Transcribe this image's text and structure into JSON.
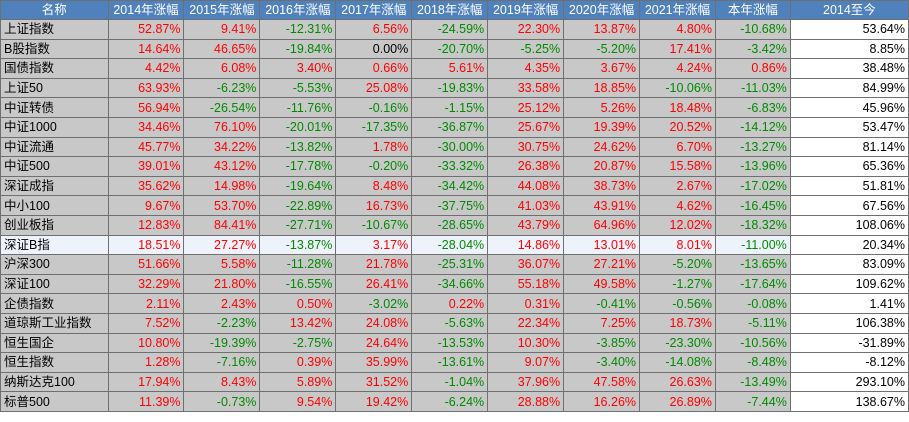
{
  "table": {
    "headers": [
      "名称",
      "2014年涨幅",
      "2015年涨幅",
      "2016年涨幅",
      "2017年涨幅",
      "2018年涨幅",
      "2019年涨幅",
      "2020年涨幅",
      "2021年涨幅",
      "本年涨幅",
      "2014至今"
    ],
    "rows": [
      {
        "name": "上证指数",
        "values": [
          "52.87%",
          "9.41%",
          "-12.31%",
          "6.56%",
          "-24.59%",
          "22.30%",
          "13.87%",
          "4.80%",
          "-10.68%"
        ],
        "since": "53.64%"
      },
      {
        "name": "B股指数",
        "values": [
          "14.64%",
          "46.65%",
          "-19.84%",
          "0.00%",
          "-20.70%",
          "-5.25%",
          "-5.20%",
          "17.41%",
          "-3.42%"
        ],
        "since": "8.85%"
      },
      {
        "name": "国债指数",
        "values": [
          "4.42%",
          "6.08%",
          "3.40%",
          "0.66%",
          "5.61%",
          "4.35%",
          "3.67%",
          "4.24%",
          "0.86%"
        ],
        "since": "38.48%"
      },
      {
        "name": "上证50",
        "values": [
          "63.93%",
          "-6.23%",
          "-5.53%",
          "25.08%",
          "-19.83%",
          "33.58%",
          "18.85%",
          "-10.06%",
          "-11.03%"
        ],
        "since": "84.99%"
      },
      {
        "name": "中证转债",
        "values": [
          "56.94%",
          "-26.54%",
          "-11.76%",
          "-0.16%",
          "-1.15%",
          "25.12%",
          "5.26%",
          "18.48%",
          "-6.83%"
        ],
        "since": "45.96%"
      },
      {
        "name": "中证1000",
        "values": [
          "34.46%",
          "76.10%",
          "-20.01%",
          "-17.35%",
          "-36.87%",
          "25.67%",
          "19.39%",
          "20.52%",
          "-14.12%"
        ],
        "since": "53.47%"
      },
      {
        "name": "中证流通",
        "values": [
          "45.77%",
          "34.22%",
          "-13.82%",
          "1.78%",
          "-30.00%",
          "30.75%",
          "24.62%",
          "6.70%",
          "-13.27%"
        ],
        "since": "81.14%"
      },
      {
        "name": "中证500",
        "values": [
          "39.01%",
          "43.12%",
          "-17.78%",
          "-0.20%",
          "-33.32%",
          "26.38%",
          "20.87%",
          "15.58%",
          "-13.96%"
        ],
        "since": "65.36%"
      },
      {
        "name": "深证成指",
        "values": [
          "35.62%",
          "14.98%",
          "-19.64%",
          "8.48%",
          "-34.42%",
          "44.08%",
          "38.73%",
          "2.67%",
          "-17.02%"
        ],
        "since": "51.81%"
      },
      {
        "name": "中小100",
        "values": [
          "9.67%",
          "53.70%",
          "-22.89%",
          "16.73%",
          "-37.75%",
          "41.03%",
          "43.91%",
          "4.62%",
          "-16.45%"
        ],
        "since": "67.56%"
      },
      {
        "name": "创业板指",
        "values": [
          "12.83%",
          "84.41%",
          "-27.71%",
          "-10.67%",
          "-28.65%",
          "43.79%",
          "64.96%",
          "12.02%",
          "-18.32%"
        ],
        "since": "108.06%"
      },
      {
        "name": "深证B指",
        "values": [
          "18.51%",
          "27.27%",
          "-13.87%",
          "3.17%",
          "-28.04%",
          "14.86%",
          "13.01%",
          "8.01%",
          "-11.00%"
        ],
        "since": "20.34%",
        "highlight": true
      },
      {
        "name": "沪深300",
        "values": [
          "51.66%",
          "5.58%",
          "-11.28%",
          "21.78%",
          "-25.31%",
          "36.07%",
          "27.21%",
          "-5.20%",
          "-13.65%"
        ],
        "since": "83.09%"
      },
      {
        "name": "深证100",
        "values": [
          "32.29%",
          "21.80%",
          "-16.55%",
          "26.41%",
          "-34.66%",
          "55.18%",
          "49.58%",
          "-1.27%",
          "-17.64%"
        ],
        "since": "109.62%"
      },
      {
        "name": "企债指数",
        "values": [
          "2.11%",
          "2.43%",
          "0.50%",
          "-3.02%",
          "0.22%",
          "0.31%",
          "-0.41%",
          "-0.56%",
          "-0.08%"
        ],
        "since": "1.41%"
      },
      {
        "name": "道琼斯工业指数",
        "values": [
          "7.52%",
          "-2.23%",
          "13.42%",
          "24.08%",
          "-5.63%",
          "22.34%",
          "7.25%",
          "18.73%",
          "-5.11%"
        ],
        "since": "106.38%"
      },
      {
        "name": "恒生国企",
        "values": [
          "10.80%",
          "-19.39%",
          "-2.75%",
          "24.64%",
          "-13.53%",
          "10.30%",
          "-3.85%",
          "-23.30%",
          "-10.56%"
        ],
        "since": "-31.89%"
      },
      {
        "name": "恒生指数",
        "values": [
          "1.28%",
          "-7.16%",
          "0.39%",
          "35.99%",
          "-13.61%",
          "9.07%",
          "-3.40%",
          "-14.08%",
          "-8.48%"
        ],
        "since": "-8.12%"
      },
      {
        "name": "纳斯达克100",
        "values": [
          "17.94%",
          "8.43%",
          "5.89%",
          "31.52%",
          "-1.04%",
          "37.96%",
          "47.58%",
          "26.63%",
          "-13.49%"
        ],
        "since": "293.10%"
      },
      {
        "name": "标普500",
        "values": [
          "11.39%",
          "-0.73%",
          "9.54%",
          "19.42%",
          "-6.24%",
          "28.88%",
          "16.26%",
          "26.89%",
          "-7.44%"
        ],
        "since": "138.67%"
      }
    ]
  },
  "colors": {
    "header_bg": "#4f81bd",
    "cell_bg": "#c8c8c8",
    "highlight_bg": "#eef2fb",
    "positive": "#ff0000",
    "negative": "#008a00"
  }
}
